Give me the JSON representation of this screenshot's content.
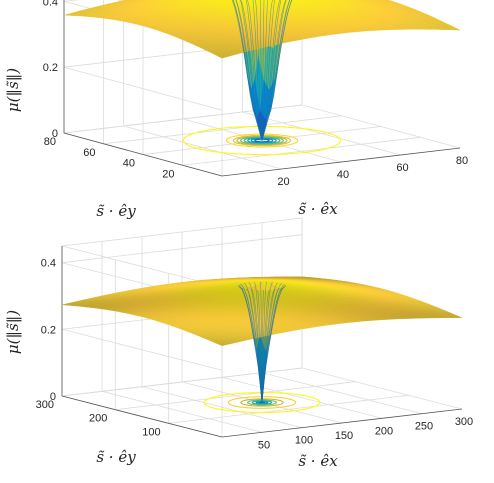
{
  "chart_data": [
    {
      "type": "surface",
      "zlabel": "μ(‖s̃‖)",
      "xlabel": "s̃ · êx",
      "ylabel": "s̃ · êy",
      "xticks": [
        20,
        40,
        60,
        80
      ],
      "yticks": [
        20,
        40,
        60,
        80
      ],
      "zticks": [
        0,
        0.2,
        0.4
      ],
      "xlim": [
        0,
        80
      ],
      "ylim": [
        0,
        80
      ],
      "zlim": [
        0,
        0.45
      ],
      "center": [
        40,
        40
      ],
      "plateau": 0.45,
      "core_radius": 10,
      "dip_radius": 3,
      "contour_radii": [
        2,
        3,
        4,
        5,
        6,
        7,
        8,
        10,
        22
      ],
      "grid": true
    },
    {
      "type": "surface",
      "zlabel": "μ(‖s̃‖)",
      "xlabel": "s̃ · êx",
      "ylabel": "s̃ · êy",
      "xticks": [
        50,
        100,
        150,
        200,
        250,
        300
      ],
      "yticks": [
        100,
        200,
        300
      ],
      "zticks": [
        0,
        0.2,
        0.4
      ],
      "xlim": [
        0,
        300
      ],
      "ylim": [
        0,
        300
      ],
      "zlim": [
        0,
        0.45
      ],
      "center": [
        150,
        150
      ],
      "plateau": 0.35,
      "core_radius": 25,
      "dip_radius": 3,
      "contour_radii": [
        3,
        6,
        10,
        15,
        22,
        35,
        60
      ],
      "grid": true
    }
  ]
}
